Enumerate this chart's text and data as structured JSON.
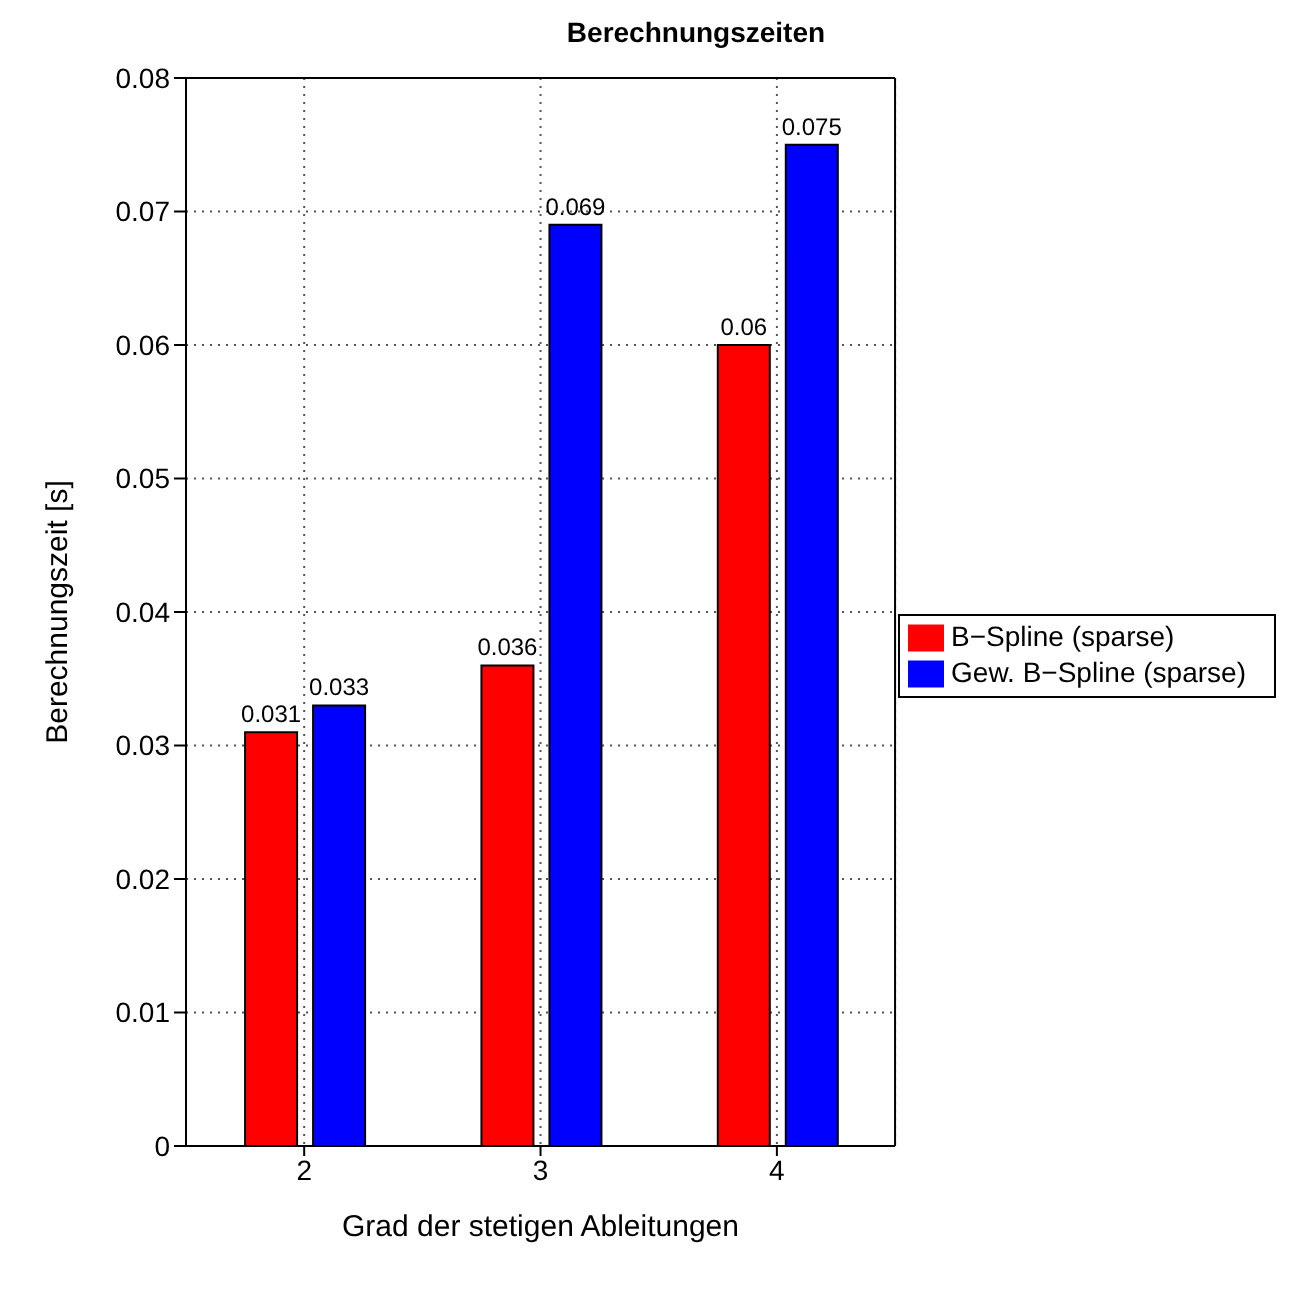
{
  "chart_data": {
    "type": "bar",
    "title": "Berechnungszeiten",
    "xlabel": "Grad der stetigen Ableitungen",
    "ylabel": "Berechnungszeit [s]",
    "categories": [
      "2",
      "3",
      "4"
    ],
    "series": [
      {
        "name": "B−Spline (sparse)",
        "color": "#ff0000",
        "values": [
          0.031,
          0.036,
          0.06
        ]
      },
      {
        "name": "Gew. B−Spline (sparse)",
        "color": "#0000ff",
        "values": [
          0.033,
          0.069,
          0.075
        ]
      }
    ],
    "ylim": [
      0,
      0.08
    ],
    "yticks": [
      0,
      0.01,
      0.02,
      0.03,
      0.04,
      0.05,
      0.06,
      0.07,
      0.08
    ],
    "grid": true,
    "legend": "right",
    "data_labels": true
  }
}
